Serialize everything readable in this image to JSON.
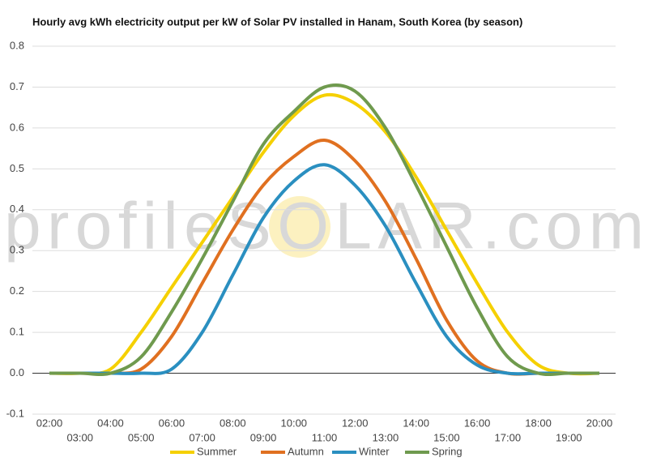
{
  "chart_data": {
    "type": "line",
    "title": "Hourly avg kWh electricity output per kW of Solar PV installed in Hanam, South Korea (by season)",
    "watermark": "profileSOLAR.com",
    "categories": [
      "02:00",
      "03:00",
      "04:00",
      "05:00",
      "06:00",
      "07:00",
      "08:00",
      "09:00",
      "10:00",
      "11:00",
      "12:00",
      "13:00",
      "14:00",
      "15:00",
      "16:00",
      "17:00",
      "18:00",
      "19:00",
      "20:00"
    ],
    "series": [
      {
        "name": "Summer",
        "color": "#f5d000",
        "values": [
          0,
          0,
          0.01,
          0.1,
          0.21,
          0.32,
          0.43,
          0.54,
          0.63,
          0.68,
          0.66,
          0.59,
          0.48,
          0.35,
          0.22,
          0.1,
          0.02,
          0,
          0
        ]
      },
      {
        "name": "Autumn",
        "color": "#e07020",
        "values": [
          0,
          0,
          0,
          0.01,
          0.09,
          0.22,
          0.35,
          0.46,
          0.53,
          0.57,
          0.52,
          0.42,
          0.28,
          0.13,
          0.03,
          0,
          0,
          0,
          0
        ]
      },
      {
        "name": "Winter",
        "color": "#2a8fc0",
        "values": [
          0,
          0,
          0,
          0,
          0.01,
          0.1,
          0.24,
          0.38,
          0.47,
          0.51,
          0.46,
          0.36,
          0.22,
          0.09,
          0.02,
          0,
          0,
          0,
          0
        ]
      },
      {
        "name": "Spring",
        "color": "#6f9a4e",
        "values": [
          0,
          0,
          0,
          0.04,
          0.15,
          0.28,
          0.42,
          0.56,
          0.64,
          0.7,
          0.69,
          0.6,
          0.46,
          0.31,
          0.16,
          0.04,
          0,
          0,
          0
        ]
      }
    ],
    "ylim": [
      -0.1,
      0.8
    ],
    "yticks": [
      -0.1,
      {
        "value": 0,
        "label": "0.0"
      },
      0.1,
      0.2,
      0.3,
      0.4,
      0.5,
      0.6,
      0.7,
      0.8
    ],
    "grid": true,
    "legend": "bottom"
  }
}
